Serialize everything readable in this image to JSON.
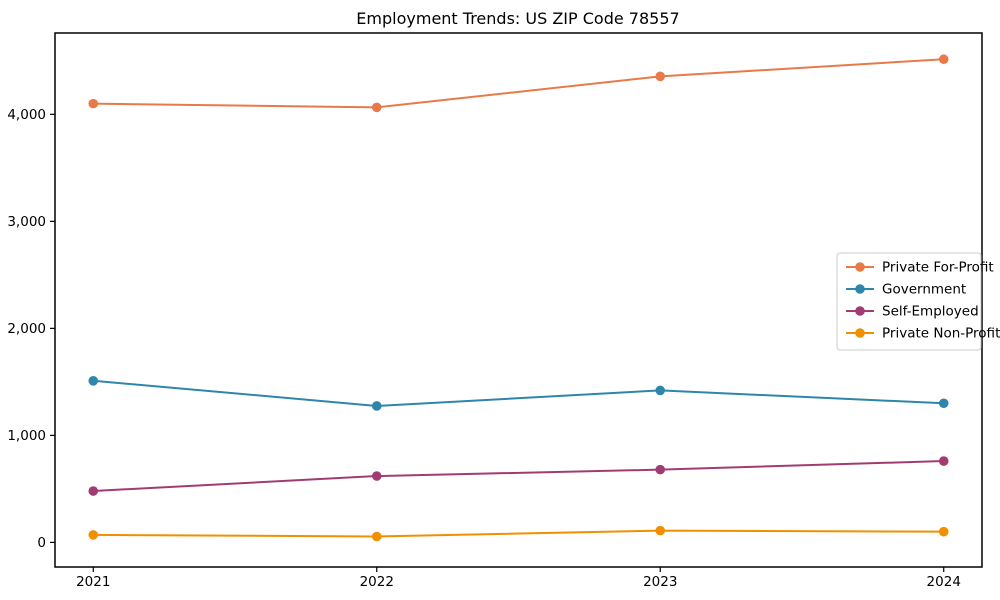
{
  "chart_data": {
    "type": "line",
    "title": "Employment Trends: US ZIP Code 78557",
    "xlabel": "",
    "ylabel": "",
    "x": [
      2021,
      2022,
      2023,
      2024
    ],
    "x_tick_labels": [
      "2021",
      "2022",
      "2023",
      "2024"
    ],
    "series": [
      {
        "name": "Private For-Profit",
        "color": "#E87948",
        "values": [
          4100,
          4065,
          4355,
          4515
        ]
      },
      {
        "name": "Government",
        "color": "#2E86AB",
        "values": [
          1510,
          1275,
          1420,
          1300
        ]
      },
      {
        "name": "Self-Employed",
        "color": "#A23B72",
        "values": [
          480,
          620,
          680,
          760
        ]
      },
      {
        "name": "Private Non-Profit",
        "color": "#F18F01",
        "values": [
          70,
          55,
          110,
          100
        ]
      }
    ],
    "xlim": [
      2020.865,
      2024.135
    ],
    "ylim": [
      -230,
      4760
    ],
    "yticks": [
      0,
      1000,
      2000,
      3000,
      4000
    ],
    "ytick_labels": [
      "0",
      "1,000",
      "2,000",
      "3,000",
      "4,000"
    ],
    "grid": false,
    "legend": {
      "position": "center right",
      "border_color": "#cccccc",
      "background": "#ffffff"
    },
    "marker": "circle",
    "line_style": "solid",
    "axis_color": "#000000"
  }
}
